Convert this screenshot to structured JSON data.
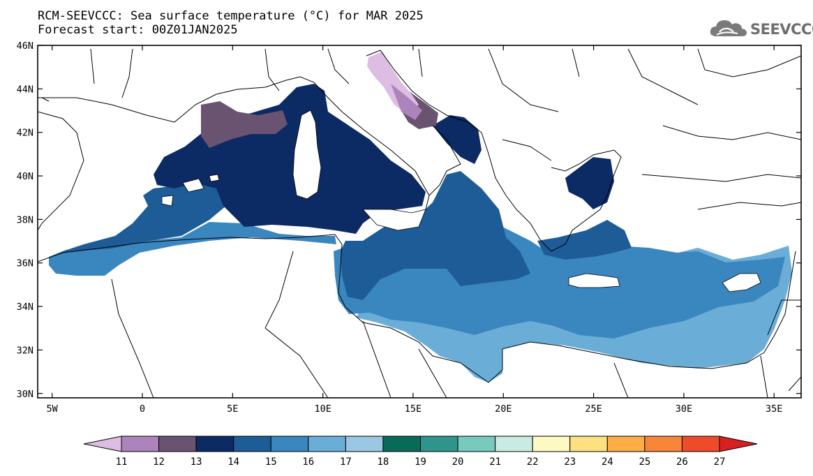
{
  "header": {
    "title_line1": "RCM-SEEVCCC: Sea surface temperature (°C) for MAR 2025",
    "title_line2": "Forecast start: 00Z01JAN2025",
    "logo_text": "SEEVCCC",
    "logo_icon": "cloud-icon"
  },
  "map": {
    "lon_ticks": [
      {
        "value": -5,
        "label": "5W"
      },
      {
        "value": 0,
        "label": "0"
      },
      {
        "value": 5,
        "label": "5E"
      },
      {
        "value": 10,
        "label": "10E"
      },
      {
        "value": 15,
        "label": "15E"
      },
      {
        "value": 20,
        "label": "20E"
      },
      {
        "value": 25,
        "label": "25E"
      },
      {
        "value": 30,
        "label": "30E"
      },
      {
        "value": 35,
        "label": "35E"
      }
    ],
    "lat_ticks": [
      {
        "value": 30,
        "label": "30N"
      },
      {
        "value": 32,
        "label": "32N"
      },
      {
        "value": 34,
        "label": "34N"
      },
      {
        "value": 36,
        "label": "36N"
      },
      {
        "value": 38,
        "label": "38N"
      },
      {
        "value": 40,
        "label": "40N"
      },
      {
        "value": 42,
        "label": "42N"
      },
      {
        "value": 44,
        "label": "44N"
      },
      {
        "value": 46,
        "label": "46N"
      }
    ],
    "lon_range": [
      -5.8,
      36.5
    ],
    "lat_range": [
      29.8,
      46
    ]
  },
  "colorbar": {
    "boundaries": [
      "11",
      "12",
      "13",
      "14",
      "15",
      "16",
      "17",
      "18",
      "19",
      "20",
      "21",
      "22",
      "23",
      "24",
      "25",
      "26",
      "27"
    ],
    "colors": [
      "#ddbde4",
      "#ac84bb",
      "#6a5271",
      "#0c2a64",
      "#1d5c97",
      "#3a86bf",
      "#6aaed8",
      "#9ac7e2",
      "#0a6a58",
      "#2f958c",
      "#78c9be",
      "#c8ebe4",
      "#fdf9c3",
      "#fde082",
      "#fbae44",
      "#f7863a",
      "#ee4b2b",
      "#d92020"
    ]
  },
  "legend_colors": {
    "lt12": "#ac84bb",
    "12_13": "#6a5271",
    "13_14": "#0c2a64",
    "14_15": "#1d5c97",
    "15_16": "#3a86bf",
    "16_17": "#6aaed8",
    "border": "#000000"
  }
}
